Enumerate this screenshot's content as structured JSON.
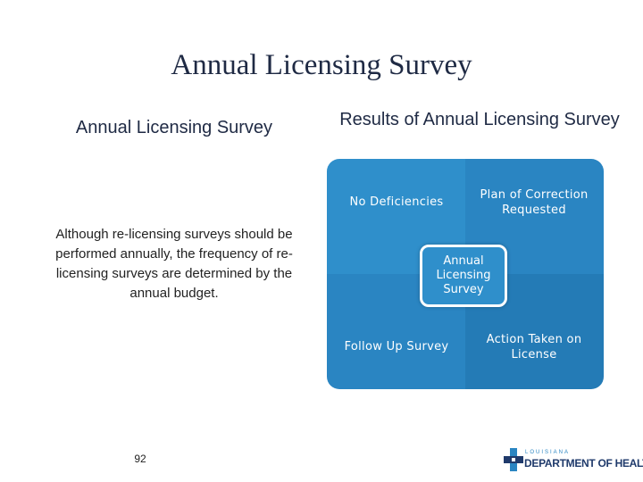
{
  "slide": {
    "title": "Annual Licensing Survey",
    "left_heading": "Annual Licensing Survey",
    "right_heading": "Results of Annual Licensing Survey",
    "body_text": "Although  re-licensing surveys should be performed annually, the  frequency of re-licensing surveys are determined by the annual budget.",
    "page_number": "92"
  },
  "diagram": {
    "quadrants": [
      {
        "label": "No Deficiencies"
      },
      {
        "label": "Plan of Correction Requested"
      },
      {
        "label": "Follow Up Survey"
      },
      {
        "label": "Action Taken on License"
      }
    ],
    "center_label": "Annual Licensing Survey",
    "colors": {
      "quadrant": "#2f8fcb",
      "quadrant_dark": "#247bb6",
      "text": "#ffffff"
    }
  },
  "logo": {
    "small_text": "LOUISIANA",
    "main_text": "DEPARTMENT OF HEALTH",
    "colors": {
      "primary": "#1f3a6b",
      "accent": "#2a85c2"
    }
  }
}
